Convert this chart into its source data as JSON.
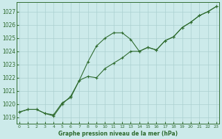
{
  "xlabel": "Graphe pression niveau de la mer (hPa)",
  "x_ticks": [
    0,
    1,
    2,
    3,
    4,
    5,
    6,
    7,
    8,
    9,
    10,
    11,
    12,
    13,
    14,
    15,
    16,
    17,
    18,
    19,
    20,
    21,
    22,
    23
  ],
  "ylim": [
    1018.5,
    1027.7
  ],
  "xlim": [
    -0.3,
    23.3
  ],
  "yticks": [
    1019,
    1020,
    1021,
    1022,
    1023,
    1024,
    1025,
    1026,
    1027
  ],
  "line1_x": [
    0,
    1,
    2,
    3,
    4,
    5,
    6,
    7,
    8,
    9,
    10,
    11,
    12,
    13,
    14,
    15,
    16,
    17,
    18,
    19,
    20,
    21,
    22,
    23
  ],
  "line1_y": [
    1019.4,
    1019.6,
    1019.6,
    1019.3,
    1019.2,
    1020.1,
    1020.5,
    1021.8,
    1022.1,
    1022.0,
    1022.7,
    1023.1,
    1023.5,
    1024.0,
    1024.0,
    1024.3,
    1024.1,
    1024.8,
    1025.1,
    1025.8,
    1026.2,
    1026.7,
    1027.0,
    1027.4
  ],
  "line2_x": [
    0,
    1,
    2,
    3,
    4,
    5,
    6,
    7,
    8,
    9,
    10,
    11,
    12,
    13,
    14,
    15,
    16,
    17,
    18,
    19,
    20,
    21,
    22,
    23
  ],
  "line2_y": [
    1019.4,
    1019.6,
    1019.6,
    1019.3,
    1019.1,
    1020.0,
    1020.6,
    1021.8,
    1023.2,
    1024.4,
    1025.0,
    1025.4,
    1025.4,
    1024.9,
    1024.0,
    1024.3,
    1024.1,
    1024.8,
    1025.1,
    1025.8,
    1026.2,
    1026.7,
    1027.0,
    1027.4
  ],
  "line_color": "#2d6a2d",
  "bg_color": "#cceaea",
  "grid_color": "#aacfcf",
  "title_color": "#2d6a2d",
  "tick_color": "#2d6a2d"
}
